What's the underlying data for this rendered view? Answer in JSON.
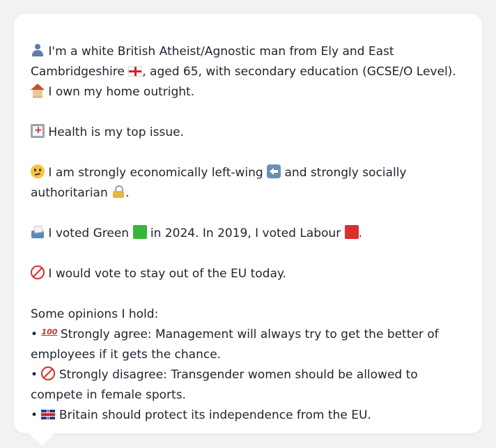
{
  "bio": {
    "intro_part1": "I'm a white British Atheist/Agnostic man from Ely and East Cambridgeshire",
    "intro_part2": ", aged 65, with secondary education (GCSE/O Level).",
    "intro_part3": "I own my home outright.",
    "health": "Health is my top issue.",
    "econ_part1": "I am strongly economically left-wing",
    "econ_part2": "and strongly socially authoritarian",
    "econ_end": ".",
    "vote_part1": "I voted Green",
    "vote_part2": "in 2024. In 2019, I voted Labour",
    "vote_end": ".",
    "eu": "I would vote to stay out of the EU today.",
    "opinions_heading": "Some opinions I hold:",
    "opinions": [
      {
        "bullet": "•",
        "text": "Strongly agree: Management will always try to get the better of employees if it gets the chance.",
        "icon": "hundred-points-icon"
      },
      {
        "bullet": "•",
        "text": "Strongly disagree: Transgender women should be allowed to compete in female sports.",
        "icon": "no-entry-icon"
      },
      {
        "bullet": "•",
        "text": "Britain should protect its independence from the EU.",
        "icon": "uk-flag-icon"
      }
    ]
  },
  "colors": {
    "background": "#f1f2f4",
    "card": "#ffffff",
    "text": "#1d2330"
  }
}
